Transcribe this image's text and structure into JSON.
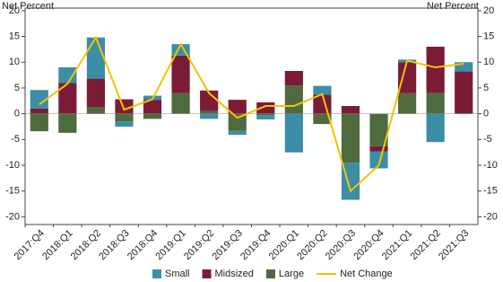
{
  "chart_data": {
    "type": "bar",
    "stacked": true,
    "y_label": "Net Percent",
    "y2_label": "Net Percent",
    "categories": [
      "2017:Q4",
      "2018:Q1",
      "2018:Q2",
      "2018:Q3",
      "2018:Q4",
      "2019:Q1",
      "2019:Q2",
      "2019:Q3",
      "2019:Q4",
      "2020:Q1",
      "2020:Q2",
      "2020:Q3",
      "2020:Q4",
      "2021:Q1",
      "2021:Q2",
      "2021:Q3"
    ],
    "series": [
      {
        "name": "Small",
        "color": "#3b8ea6",
        "values": [
          3.6,
          3,
          8,
          -1,
          0.8,
          2.2,
          -1,
          -0.8,
          -0.8,
          -7.5,
          1.7,
          -7.2,
          -3.3,
          0.5,
          -5.5,
          1.8
        ]
      },
      {
        "name": "Midsized",
        "color": "#7b1c37",
        "values": [
          1,
          6,
          5.6,
          2.8,
          2.7,
          7.3,
          4,
          2.7,
          2.2,
          2.8,
          3.7,
          1.5,
          -1,
          6,
          9,
          8.2
        ]
      },
      {
        "name": "Large",
        "color": "#4f6b3d",
        "values": [
          -3.4,
          -3.7,
          1.2,
          -1.5,
          -1,
          4,
          0.5,
          -3.3,
          -0.3,
          5.5,
          -2,
          -9.5,
          -6.3,
          4,
          4,
          0
        ]
      },
      {
        "name": "Net Change",
        "type": "line",
        "color": "#f2c200",
        "values": [
          1.8,
          5.8,
          14.8,
          0.8,
          2.8,
          13.5,
          4,
          -0.8,
          1.5,
          1.5,
          3.8,
          -15,
          -10,
          10.3,
          9,
          9.7
        ]
      }
    ],
    "ylim": [
      -21.5,
      20.5
    ],
    "yticks": [
      -20,
      -15,
      -10,
      -5,
      0,
      5,
      10,
      15,
      20
    ],
    "y2lim": [
      -21.5,
      20.5
    ],
    "y2ticks": [
      -20,
      -15,
      -10,
      -5,
      0,
      5,
      10,
      15,
      20
    ],
    "grid": false
  }
}
